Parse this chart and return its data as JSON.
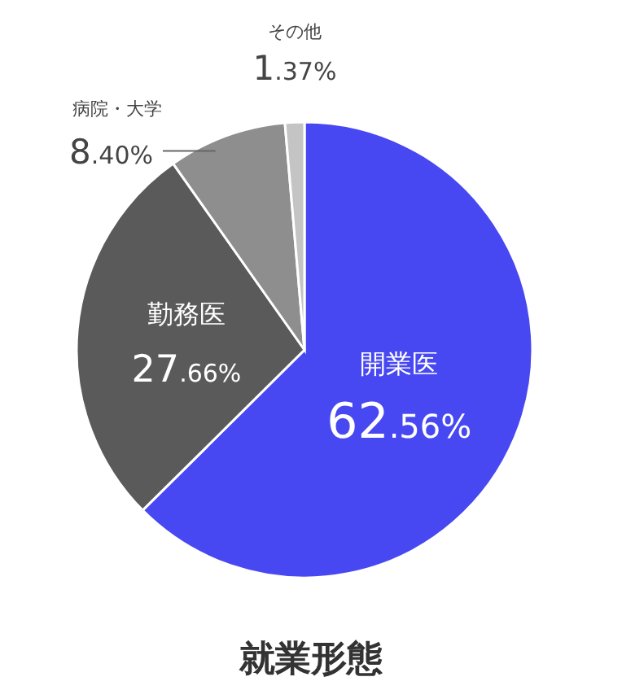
{
  "chart_data": {
    "type": "pie",
    "title": "就業形態",
    "categories": [
      "開業医",
      "勤務医",
      "病院・大学",
      "その他"
    ],
    "values": [
      62.56,
      27.66,
      8.4,
      1.37
    ],
    "value_labels": [
      "62.56%",
      "27.66%",
      "8.40%",
      "1.37%"
    ],
    "colors": [
      "#4848f2",
      "#5a5a5a",
      "#8e8e8e",
      "#c4c4c4"
    ]
  }
}
